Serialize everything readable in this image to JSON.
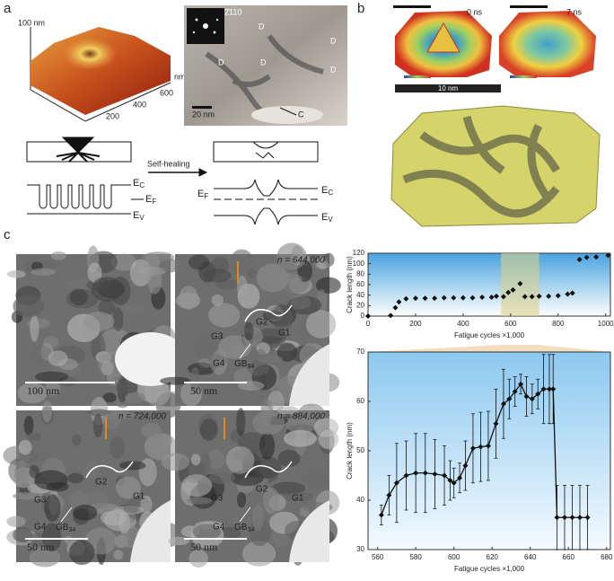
{
  "panel_labels": [
    "a",
    "b",
    "c"
  ],
  "afm": {
    "z_label": "100 nm",
    "x_unit": "nm",
    "x_ticks": [
      "200",
      "400",
      "600"
    ]
  },
  "tem": {
    "diffraction_index": "2̄110",
    "defect_labels": [
      "D",
      "D",
      "D",
      "D",
      "D"
    ],
    "scale_bar": "20 nm",
    "crack_label": "C"
  },
  "schematic": {
    "arrow_label": "Self-healing",
    "conduction": [
      "E",
      "C"
    ],
    "fermi": [
      "E",
      "F"
    ],
    "valence": [
      "E",
      "V"
    ]
  },
  "md": {
    "times": [
      "0 ns",
      "7 ns"
    ],
    "scale_bar": "10 nm"
  },
  "micrographs": [
    {
      "scale_bar": "100 nm"
    },
    {
      "cycles": "n = 644,000",
      "scale_bar": "50 nm"
    },
    {
      "cycles": "n = 724,000",
      "scale_bar": "50 nm"
    },
    {
      "cycles": "n = 884,000",
      "scale_bar": "50 nm"
    }
  ],
  "grain_labels": [
    "G1",
    "G2",
    "G3",
    "G4"
  ],
  "boundary_label": [
    "GB",
    "34"
  ],
  "chart_data": [
    {
      "type": "scatter",
      "x_label": "Fatigue cycles ×1,000",
      "y_label": "Crack length (nm)",
      "x": [
        0,
        95,
        115,
        130,
        160,
        200,
        240,
        280,
        320,
        360,
        400,
        440,
        480,
        520,
        540,
        570,
        590,
        610,
        640,
        660,
        690,
        720,
        760,
        800,
        840,
        860,
        890,
        920,
        960,
        1010
      ],
      "values": [
        0,
        1,
        16,
        27,
        33,
        34,
        34,
        34,
        35,
        35,
        35,
        35,
        36,
        36,
        38,
        37,
        45,
        50,
        62,
        37,
        37,
        38,
        38,
        39,
        42,
        44,
        108,
        112,
        113,
        116
      ],
      "color": "#111111",
      "highlight_range": [
        560,
        720
      ],
      "xlim": [
        0,
        1020
      ],
      "ylim": [
        0,
        120
      ],
      "xticks": [
        0,
        200,
        400,
        600,
        800,
        1000
      ],
      "yticks": [
        0,
        20,
        40,
        60,
        80,
        100,
        120
      ]
    },
    {
      "type": "line",
      "x_label": "Fatigue cycles ×1,000",
      "y_label": "Crack length (nm)",
      "x": [
        562,
        566,
        570,
        575,
        580,
        585,
        590,
        595,
        598,
        600,
        603,
        606,
        610,
        614,
        618,
        622,
        626,
        629,
        632,
        635,
        638,
        641,
        644,
        647,
        650,
        652,
        654,
        658,
        662,
        666,
        670
      ],
      "values": [
        37,
        41,
        43.5,
        45,
        45.5,
        45.5,
        45.3,
        45,
        44,
        43.5,
        44.5,
        47,
        50.5,
        50.8,
        51,
        55.5,
        59.5,
        60.5,
        62,
        63.5,
        61,
        60.5,
        61.5,
        62.5,
        62.5,
        62.5,
        36.5,
        36.5,
        36.5,
        36.5,
        36.5
      ],
      "errors": [
        2,
        4,
        8,
        7,
        8,
        8,
        7,
        6,
        4,
        3,
        3,
        5,
        7,
        7,
        7,
        7,
        7,
        4,
        3,
        2,
        4,
        3,
        3,
        7,
        7,
        7,
        6.5,
        6.5,
        6.5,
        6.5,
        6.5
      ],
      "color": "#111111",
      "xlim": [
        555,
        682
      ],
      "ylim": [
        30,
        70
      ],
      "xticks": [
        560,
        580,
        600,
        620,
        640,
        660,
        680
      ],
      "yticks": [
        30,
        40,
        50,
        60,
        70
      ]
    }
  ]
}
